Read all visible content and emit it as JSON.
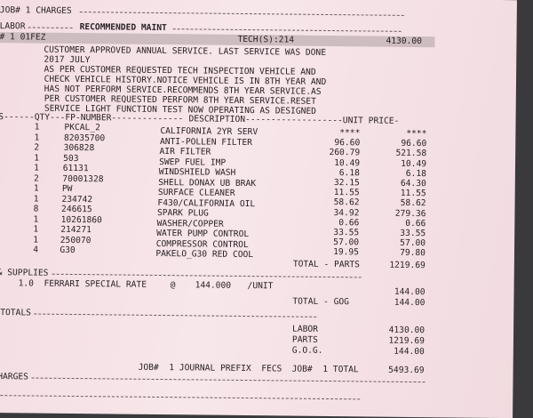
{
  "header": {
    "job_charges": "JOB# 1 CHARGES",
    "labor_label": "LABOR",
    "section_title": "RECOMMENDED MAINT",
    "job_line": "# 1 01FEZ",
    "tech": "TECH(S):214",
    "labor_amount": "4130.00"
  },
  "story": [
    "CUSTOMER APPROVED ANNUAL SERVICE. LAST SERVICE WAS DONE",
    "2017 JULY",
    "AS PER CUSTOMER REQUESTED TECH INSPECTION VEHICLE AND",
    "CHECK VEHICLE HISTORY.NOTICE VEHICLE IS IN 8TH YEAR AND",
    "HAS NOT PERFORM SERVICE.RECOMMENDS 8TH YEAR SERVICE.AS",
    "PER CUSTOMER REQUESTED PERFORM 8TH YEAR SERVICE.RESET",
    "SERVICE LIGHT FUNCTION TEST NOW OPERATING AS DESIGNED"
  ],
  "parts": {
    "header": {
      "left": "TS------QTY---FP-NUMBER--------------",
      "desc": "DESCRIPTION-------------------UNIT PRICE-"
    },
    "rows": [
      {
        "qty": "1",
        "num": "PKCAL_2",
        "desc": "CALIFORNIA 2YR SERV"
      },
      {
        "qty": "1",
        "num": "82035700",
        "desc": "ANTI-POLLEN FILTER"
      },
      {
        "qty": "2",
        "num": "306828",
        "desc": "AIR FILTER"
      },
      {
        "qty": "1",
        "num": "503",
        "desc": "SWEP FUEL IMP"
      },
      {
        "qty": "1",
        "num": "61131",
        "desc": "WINDSHIELD WASH"
      },
      {
        "qty": "2",
        "num": "70001328",
        "desc": "SHELL DONAX UB BRAK"
      },
      {
        "qty": "1",
        "num": "PW",
        "desc": "SURFACE CLEANER"
      },
      {
        "qty": "1",
        "num": "234742",
        "desc": "F430/CALIFORNIA OIL"
      },
      {
        "qty": "8",
        "num": "246615",
        "desc": "SPARK PLUG"
      },
      {
        "qty": "1",
        "num": "10261860",
        "desc": "WASHER/COPPER"
      },
      {
        "qty": "1",
        "num": "214271",
        "desc": "WATER PUMP CONTROL"
      },
      {
        "qty": "1",
        "num": "250070",
        "desc": "COMPRESSOR CONTROL"
      },
      {
        "qty": "4",
        "num": "G30",
        "desc": "PAKELO_G30 RED COOL"
      }
    ],
    "prices": [
      {
        "unit": "****",
        "ext": "****"
      },
      {
        "unit": "96.60",
        "ext": "96.60"
      },
      {
        "unit": "260.79",
        "ext": "521.58"
      },
      {
        "unit": "10.49",
        "ext": "10.49"
      },
      {
        "unit": "6.18",
        "ext": "6.18"
      },
      {
        "unit": "32.15",
        "ext": "64.30"
      },
      {
        "unit": "11.55",
        "ext": "11.55"
      },
      {
        "unit": "58.62",
        "ext": "58.62"
      },
      {
        "unit": "34.92",
        "ext": "279.36"
      },
      {
        "unit": "0.66",
        "ext": "0.66"
      },
      {
        "unit": "33.55",
        "ext": "33.55"
      },
      {
        "unit": "57.00",
        "ext": "57.00"
      },
      {
        "unit": "19.95",
        "ext": "79.80"
      }
    ],
    "total_label": "TOTAL - PARTS",
    "total": "1219.69"
  },
  "supplies": {
    "label": "& SUPPLIES",
    "line": "1.0  FERRARI SPECIAL RATE",
    "at": "@",
    "rate": "144.000",
    "unit": "/UNIT",
    "amount": "144.00",
    "total_label": "TOTAL - GOG",
    "total": "144.00"
  },
  "totals": {
    "label": "TOTALS",
    "rows": [
      {
        "label": "LABOR",
        "value": "4130.00"
      },
      {
        "label": "PARTS",
        "value": "1219.69"
      },
      {
        "label": "G.O.G.",
        "value": "144.00"
      }
    ],
    "journal": "JOB#  1 JOURNAL PREFIX  FECS",
    "job_total_label": "JOB#  1 TOTAL",
    "job_total": "5493.69"
  },
  "footer": {
    "charges": "CHARGES"
  }
}
